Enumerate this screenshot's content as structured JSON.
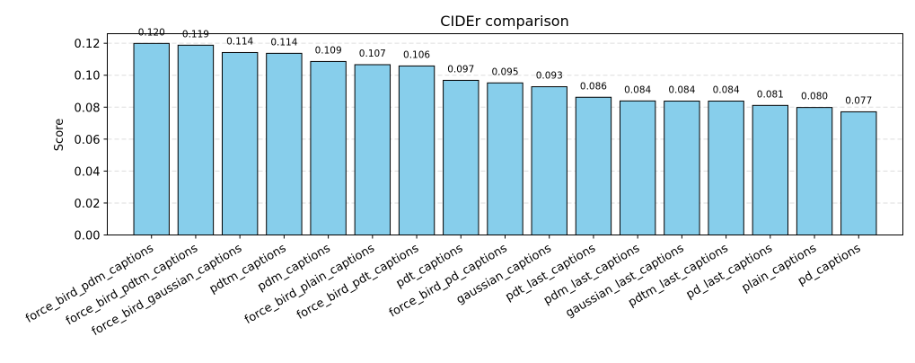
{
  "chart_data": {
    "type": "bar",
    "title": "CIDEr comparison",
    "xlabel": "",
    "ylabel": "Score",
    "ylim": [
      0,
      0.126
    ],
    "yticks": [
      0.0,
      0.02,
      0.04,
      0.06,
      0.08,
      0.1,
      0.12
    ],
    "ytick_labels": [
      "0.00",
      "0.02",
      "0.04",
      "0.06",
      "0.08",
      "0.10",
      "0.12"
    ],
    "grid": "y-dashed",
    "categories": [
      "force_bird_pdm_captions",
      "force_bird_pdtm_captions",
      "force_bird_gaussian_captions",
      "pdtm_captions",
      "pdm_captions",
      "force_bird_plain_captions",
      "force_bird_pdt_captions",
      "pdt_captions",
      "force_bird_pd_captions",
      "gaussian_captions",
      "pdt_last_captions",
      "pdm_last_captions",
      "gaussian_last_captions",
      "pdtm_last_captions",
      "pd_last_captions",
      "plain_captions",
      "pd_captions"
    ],
    "values": [
      0.1199,
      0.1188,
      0.1142,
      0.1137,
      0.1086,
      0.1066,
      0.1058,
      0.0968,
      0.0952,
      0.0928,
      0.0862,
      0.0839,
      0.0838,
      0.0838,
      0.0811,
      0.0798,
      0.0771
    ],
    "value_labels": [
      "0.120",
      "0.119",
      "0.114",
      "0.114",
      "0.109",
      "0.107",
      "0.106",
      "0.097",
      "0.095",
      "0.093",
      "0.086",
      "0.084",
      "0.084",
      "0.084",
      "0.081",
      "0.080",
      "0.077"
    ],
    "bar_color": "#87ceeb",
    "bar_edge_color": "#000000",
    "grid_color": "#dddddd"
  }
}
